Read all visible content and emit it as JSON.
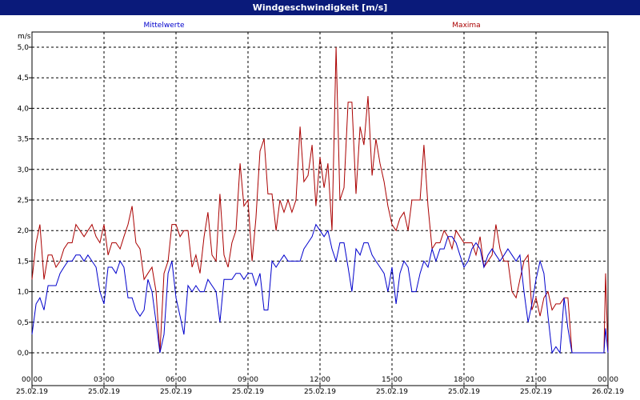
{
  "window": {
    "title": "Windgeschwindigkeit [m/s]"
  },
  "chart_data": {
    "type": "line",
    "title": "Windgeschwindigkeit [m/s]",
    "ylabel": "m/s",
    "ylim": [
      0,
      5.0
    ],
    "xlim_hours": [
      0,
      24
    ],
    "grid": true,
    "legend": [
      {
        "name": "Mittelwerte",
        "color": "#0000cc",
        "placement": "top-left"
      },
      {
        "name": "Maxima",
        "color": "#aa0000",
        "placement": "top-right"
      }
    ],
    "y_ticks": [
      "0,0",
      "0,5",
      "1,0",
      "1,5",
      "2,0",
      "2,5",
      "3,0",
      "3,5",
      "4,0",
      "4,5",
      "5,0"
    ],
    "x_ticks": [
      {
        "time": "00:00",
        "date": "25.02.19"
      },
      {
        "time": "03:00",
        "date": "25.02.19"
      },
      {
        "time": "06:00",
        "date": "25.02.19"
      },
      {
        "time": "09:00",
        "date": "25.02.19"
      },
      {
        "time": "12:00",
        "date": "25.02.19"
      },
      {
        "time": "15:00",
        "date": "25.02.19"
      },
      {
        "time": "18:00",
        "date": "25.02.19"
      },
      {
        "time": "21:00",
        "date": "25.02.19"
      },
      {
        "time": "00:00",
        "date": "26.02.19"
      }
    ],
    "series": [
      {
        "name": "Mittelwerte",
        "color": "#0000cc",
        "points": [
          [
            0.0,
            0.3
          ],
          [
            0.17,
            0.8
          ],
          [
            0.33,
            0.9
          ],
          [
            0.5,
            0.7
          ],
          [
            0.67,
            1.1
          ],
          [
            0.83,
            1.1
          ],
          [
            1.0,
            1.1
          ],
          [
            1.17,
            1.3
          ],
          [
            1.33,
            1.4
          ],
          [
            1.5,
            1.5
          ],
          [
            1.67,
            1.5
          ],
          [
            1.83,
            1.6
          ],
          [
            2.0,
            1.6
          ],
          [
            2.17,
            1.5
          ],
          [
            2.33,
            1.6
          ],
          [
            2.5,
            1.5
          ],
          [
            2.67,
            1.4
          ],
          [
            2.83,
            1.0
          ],
          [
            3.0,
            0.8
          ],
          [
            3.17,
            1.4
          ],
          [
            3.33,
            1.4
          ],
          [
            3.5,
            1.3
          ],
          [
            3.67,
            1.5
          ],
          [
            3.83,
            1.4
          ],
          [
            4.0,
            0.9
          ],
          [
            4.17,
            0.9
          ],
          [
            4.33,
            0.7
          ],
          [
            4.5,
            0.6
          ],
          [
            4.67,
            0.7
          ],
          [
            4.83,
            1.2
          ],
          [
            5.0,
            1.0
          ],
          [
            5.17,
            0.5
          ],
          [
            5.33,
            0.0
          ],
          [
            5.5,
            0.3
          ],
          [
            5.67,
            1.3
          ],
          [
            5.83,
            1.5
          ],
          [
            6.0,
            0.9
          ],
          [
            6.17,
            0.6
          ],
          [
            6.33,
            0.3
          ],
          [
            6.5,
            1.1
          ],
          [
            6.67,
            1.0
          ],
          [
            6.83,
            1.1
          ],
          [
            7.0,
            1.0
          ],
          [
            7.17,
            1.0
          ],
          [
            7.33,
            1.2
          ],
          [
            7.5,
            1.1
          ],
          [
            7.67,
            1.0
          ],
          [
            7.83,
            0.5
          ],
          [
            8.0,
            1.2
          ],
          [
            8.17,
            1.2
          ],
          [
            8.33,
            1.2
          ],
          [
            8.5,
            1.3
          ],
          [
            8.67,
            1.3
          ],
          [
            8.83,
            1.2
          ],
          [
            9.0,
            1.3
          ],
          [
            9.17,
            1.3
          ],
          [
            9.33,
            1.1
          ],
          [
            9.5,
            1.3
          ],
          [
            9.67,
            0.7
          ],
          [
            9.83,
            0.7
          ],
          [
            10.0,
            1.5
          ],
          [
            10.17,
            1.4
          ],
          [
            10.33,
            1.5
          ],
          [
            10.5,
            1.6
          ],
          [
            10.67,
            1.5
          ],
          [
            10.83,
            1.5
          ],
          [
            11.0,
            1.5
          ],
          [
            11.17,
            1.5
          ],
          [
            11.33,
            1.7
          ],
          [
            11.5,
            1.8
          ],
          [
            11.67,
            1.9
          ],
          [
            11.83,
            2.1
          ],
          [
            12.0,
            2.0
          ],
          [
            12.17,
            1.9
          ],
          [
            12.33,
            2.0
          ],
          [
            12.5,
            1.7
          ],
          [
            12.67,
            1.5
          ],
          [
            12.83,
            1.8
          ],
          [
            13.0,
            1.8
          ],
          [
            13.17,
            1.4
          ],
          [
            13.33,
            1.0
          ],
          [
            13.5,
            1.7
          ],
          [
            13.67,
            1.6
          ],
          [
            13.83,
            1.8
          ],
          [
            14.0,
            1.8
          ],
          [
            14.17,
            1.6
          ],
          [
            14.33,
            1.5
          ],
          [
            14.5,
            1.4
          ],
          [
            14.67,
            1.3
          ],
          [
            14.83,
            1.0
          ],
          [
            15.0,
            1.4
          ],
          [
            15.17,
            0.8
          ],
          [
            15.33,
            1.3
          ],
          [
            15.5,
            1.5
          ],
          [
            15.67,
            1.4
          ],
          [
            15.83,
            1.0
          ],
          [
            16.0,
            1.0
          ],
          [
            16.17,
            1.3
          ],
          [
            16.33,
            1.5
          ],
          [
            16.5,
            1.4
          ],
          [
            16.67,
            1.7
          ],
          [
            16.83,
            1.5
          ],
          [
            17.0,
            1.7
          ],
          [
            17.17,
            1.7
          ],
          [
            17.33,
            1.9
          ],
          [
            17.5,
            1.9
          ],
          [
            17.67,
            1.8
          ],
          [
            17.83,
            1.6
          ],
          [
            18.0,
            1.4
          ],
          [
            18.17,
            1.5
          ],
          [
            18.33,
            1.7
          ],
          [
            18.5,
            1.8
          ],
          [
            18.67,
            1.7
          ],
          [
            18.83,
            1.4
          ],
          [
            19.0,
            1.6
          ],
          [
            19.17,
            1.7
          ],
          [
            19.33,
            1.6
          ],
          [
            19.5,
            1.5
          ],
          [
            19.67,
            1.6
          ],
          [
            19.83,
            1.7
          ],
          [
            20.0,
            1.6
          ],
          [
            20.17,
            1.5
          ],
          [
            20.33,
            1.6
          ],
          [
            20.5,
            1.0
          ],
          [
            20.67,
            0.5
          ],
          [
            20.83,
            0.8
          ],
          [
            21.0,
            1.2
          ],
          [
            21.17,
            1.5
          ],
          [
            21.33,
            1.3
          ],
          [
            21.5,
            0.6
          ],
          [
            21.67,
            0.0
          ],
          [
            21.83,
            0.1
          ],
          [
            22.0,
            0.0
          ],
          [
            22.17,
            0.9
          ],
          [
            22.33,
            0.4
          ],
          [
            22.5,
            0.0
          ],
          [
            22.67,
            0.0
          ],
          [
            22.83,
            0.0
          ],
          [
            23.0,
            0.0
          ],
          [
            23.17,
            0.0
          ],
          [
            23.33,
            0.0
          ],
          [
            23.5,
            0.0
          ],
          [
            23.67,
            0.0
          ],
          [
            23.83,
            0.0
          ],
          [
            23.9,
            0.4
          ],
          [
            24.0,
            0.0
          ]
        ]
      },
      {
        "name": "Maxima",
        "color": "#aa0000",
        "points": [
          [
            0.0,
            1.2
          ],
          [
            0.17,
            1.8
          ],
          [
            0.33,
            2.1
          ],
          [
            0.5,
            1.2
          ],
          [
            0.67,
            1.6
          ],
          [
            0.83,
            1.6
          ],
          [
            1.0,
            1.4
          ],
          [
            1.17,
            1.5
          ],
          [
            1.33,
            1.7
          ],
          [
            1.5,
            1.8
          ],
          [
            1.67,
            1.8
          ],
          [
            1.83,
            2.1
          ],
          [
            2.0,
            2.0
          ],
          [
            2.17,
            1.9
          ],
          [
            2.33,
            2.0
          ],
          [
            2.5,
            2.1
          ],
          [
            2.67,
            1.9
          ],
          [
            2.83,
            1.8
          ],
          [
            3.0,
            2.1
          ],
          [
            3.17,
            1.6
          ],
          [
            3.33,
            1.8
          ],
          [
            3.5,
            1.8
          ],
          [
            3.67,
            1.7
          ],
          [
            3.83,
            1.9
          ],
          [
            4.0,
            2.1
          ],
          [
            4.17,
            2.4
          ],
          [
            4.33,
            1.8
          ],
          [
            4.5,
            1.7
          ],
          [
            4.67,
            1.2
          ],
          [
            4.83,
            1.3
          ],
          [
            5.0,
            1.4
          ],
          [
            5.17,
            1.0
          ],
          [
            5.33,
            0.0
          ],
          [
            5.5,
            1.3
          ],
          [
            5.67,
            1.5
          ],
          [
            5.83,
            2.1
          ],
          [
            6.0,
            2.1
          ],
          [
            6.17,
            1.9
          ],
          [
            6.33,
            2.0
          ],
          [
            6.5,
            2.0
          ],
          [
            6.67,
            1.4
          ],
          [
            6.83,
            1.6
          ],
          [
            7.0,
            1.3
          ],
          [
            7.17,
            1.9
          ],
          [
            7.33,
            2.3
          ],
          [
            7.5,
            1.6
          ],
          [
            7.67,
            1.5
          ],
          [
            7.83,
            2.6
          ],
          [
            8.0,
            1.6
          ],
          [
            8.17,
            1.4
          ],
          [
            8.33,
            1.8
          ],
          [
            8.5,
            2.0
          ],
          [
            8.67,
            3.1
          ],
          [
            8.83,
            2.4
          ],
          [
            9.0,
            2.5
          ],
          [
            9.17,
            1.5
          ],
          [
            9.33,
            2.2
          ],
          [
            9.5,
            3.3
          ],
          [
            9.67,
            3.5
          ],
          [
            9.83,
            2.6
          ],
          [
            10.0,
            2.6
          ],
          [
            10.17,
            2.0
          ],
          [
            10.33,
            2.5
          ],
          [
            10.5,
            2.3
          ],
          [
            10.67,
            2.5
          ],
          [
            10.83,
            2.3
          ],
          [
            11.0,
            2.5
          ],
          [
            11.17,
            3.7
          ],
          [
            11.33,
            2.8
          ],
          [
            11.5,
            2.9
          ],
          [
            11.67,
            3.4
          ],
          [
            11.83,
            2.4
          ],
          [
            12.0,
            3.2
          ],
          [
            12.17,
            2.7
          ],
          [
            12.33,
            3.1
          ],
          [
            12.5,
            2.0
          ],
          [
            12.67,
            5.0
          ],
          [
            12.83,
            2.5
          ],
          [
            13.0,
            2.7
          ],
          [
            13.17,
            4.1
          ],
          [
            13.33,
            4.1
          ],
          [
            13.5,
            2.6
          ],
          [
            13.67,
            3.7
          ],
          [
            13.83,
            3.4
          ],
          [
            14.0,
            4.2
          ],
          [
            14.17,
            2.9
          ],
          [
            14.33,
            3.5
          ],
          [
            14.5,
            3.1
          ],
          [
            14.67,
            2.8
          ],
          [
            14.83,
            2.4
          ],
          [
            15.0,
            2.1
          ],
          [
            15.17,
            2.0
          ],
          [
            15.33,
            2.2
          ],
          [
            15.5,
            2.3
          ],
          [
            15.67,
            2.0
          ],
          [
            15.83,
            2.5
          ],
          [
            16.0,
            2.5
          ],
          [
            16.17,
            2.5
          ],
          [
            16.33,
            3.4
          ],
          [
            16.5,
            2.4
          ],
          [
            16.67,
            1.7
          ],
          [
            16.83,
            1.8
          ],
          [
            17.0,
            1.8
          ],
          [
            17.17,
            2.0
          ],
          [
            17.33,
            1.9
          ],
          [
            17.5,
            1.7
          ],
          [
            17.67,
            2.0
          ],
          [
            17.83,
            1.9
          ],
          [
            18.0,
            1.8
          ],
          [
            18.17,
            1.8
          ],
          [
            18.33,
            1.8
          ],
          [
            18.5,
            1.6
          ],
          [
            18.67,
            1.9
          ],
          [
            18.83,
            1.4
          ],
          [
            19.0,
            1.5
          ],
          [
            19.17,
            1.6
          ],
          [
            19.33,
            2.1
          ],
          [
            19.5,
            1.7
          ],
          [
            19.67,
            1.5
          ],
          [
            19.83,
            1.5
          ],
          [
            20.0,
            1.0
          ],
          [
            20.17,
            0.9
          ],
          [
            20.33,
            1.2
          ],
          [
            20.5,
            1.5
          ],
          [
            20.67,
            1.6
          ],
          [
            20.83,
            0.7
          ],
          [
            21.0,
            0.9
          ],
          [
            21.17,
            0.6
          ],
          [
            21.33,
            0.9
          ],
          [
            21.5,
            1.0
          ],
          [
            21.67,
            0.7
          ],
          [
            21.83,
            0.8
          ],
          [
            22.0,
            0.8
          ],
          [
            22.17,
            0.9
          ],
          [
            22.33,
            0.9
          ],
          [
            22.5,
            0.0
          ],
          [
            22.67,
            0.0
          ],
          [
            22.83,
            0.0
          ],
          [
            23.0,
            0.0
          ],
          [
            23.17,
            0.0
          ],
          [
            23.33,
            0.0
          ],
          [
            23.5,
            0.0
          ],
          [
            23.67,
            0.0
          ],
          [
            23.83,
            0.0
          ],
          [
            23.9,
            1.3
          ],
          [
            24.0,
            0.0
          ]
        ]
      }
    ]
  }
}
